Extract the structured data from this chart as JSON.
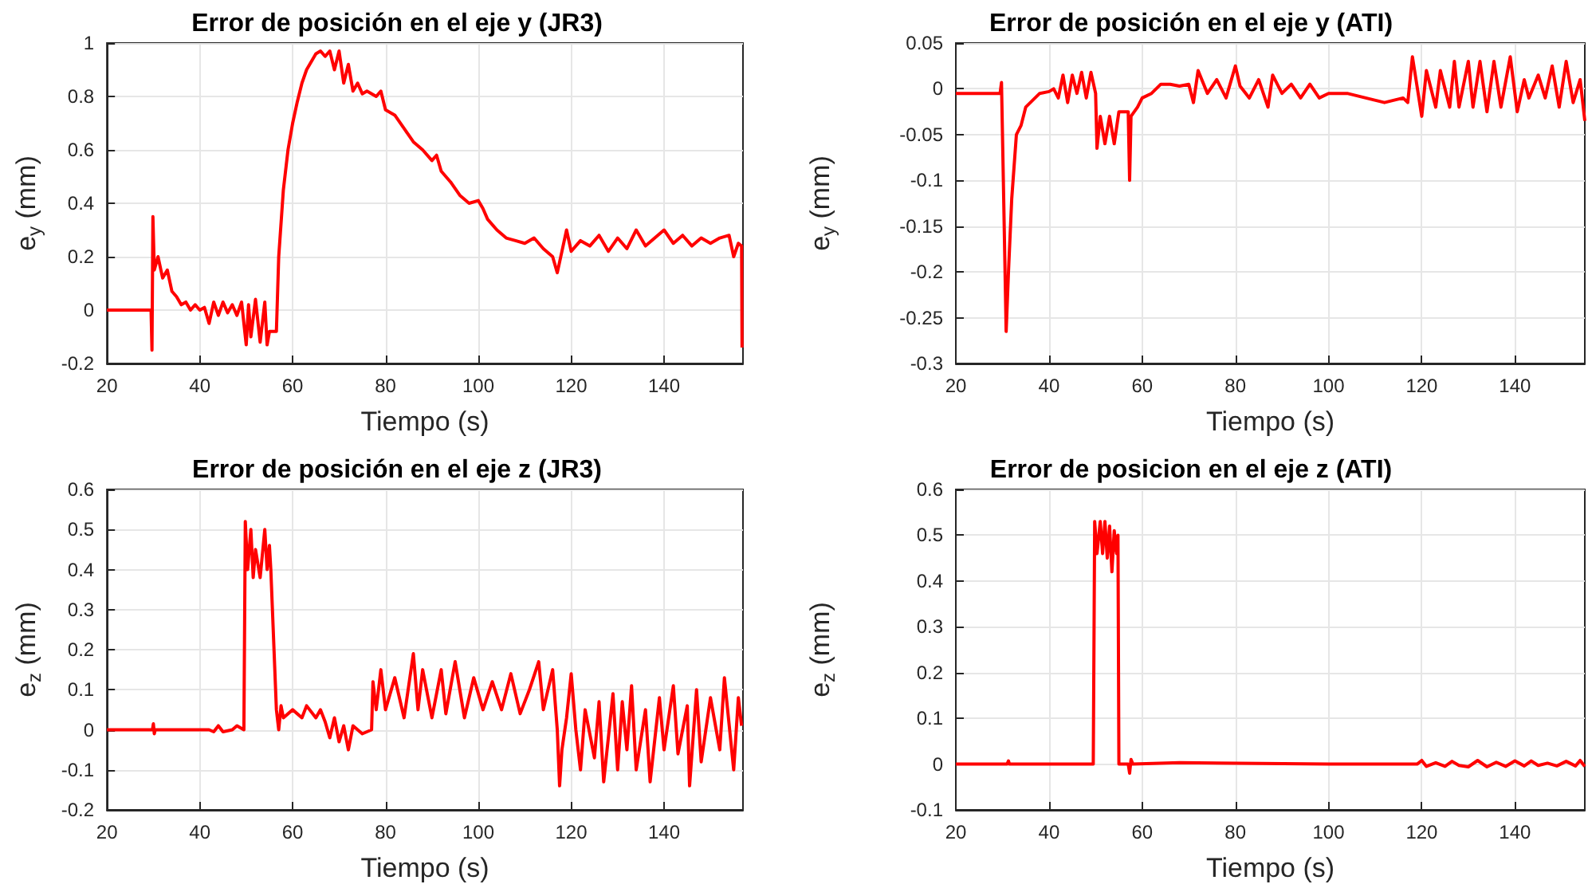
{
  "chart_data": [
    {
      "type": "line",
      "title": "Error de posición en el eje y (JR3)",
      "xlabel": "Tiempo (s)",
      "ylabel": "e$_{y}$ (mm)",
      "color": "#ff0000",
      "grid": true,
      "xlim": [
        20,
        157
      ],
      "xticks": [
        20,
        40,
        60,
        80,
        100,
        120,
        140
      ],
      "ylim": [
        -0.2,
        1
      ],
      "yticks": [
        -0.2,
        0,
        0.2,
        0.4,
        0.6,
        0.8,
        1
      ],
      "x": [
        20,
        29.5,
        29.7,
        29.9,
        30.2,
        31,
        32,
        33,
        34,
        35,
        36,
        37,
        38,
        39,
        40,
        41,
        42,
        43,
        44,
        45,
        46,
        47,
        48,
        49,
        50,
        50.5,
        51,
        52,
        53,
        54,
        54.5,
        55,
        56.5,
        57,
        58,
        59,
        60,
        61,
        62,
        63,
        64,
        65,
        66,
        67,
        68,
        69,
        70,
        71,
        72,
        73,
        74,
        75,
        76,
        78,
        79,
        80,
        82,
        84,
        86,
        88,
        90,
        91,
        92,
        94,
        96,
        98,
        100,
        101,
        102,
        104,
        106,
        108,
        110,
        112,
        114,
        116,
        117,
        118,
        119,
        120,
        122,
        124,
        126,
        128,
        130,
        132,
        134,
        136,
        138,
        140,
        142,
        144,
        146,
        148,
        150,
        152,
        154,
        155,
        156,
        156.7,
        156.8
      ],
      "values": [
        0,
        0,
        -0.15,
        0.35,
        0.15,
        0.2,
        0.12,
        0.15,
        0.07,
        0.05,
        0.02,
        0.03,
        0,
        0.02,
        0,
        0.01,
        -0.05,
        0.03,
        -0.02,
        0.03,
        -0.01,
        0.02,
        -0.02,
        0.03,
        -0.13,
        0.02,
        -0.1,
        0.04,
        -0.12,
        0.03,
        -0.13,
        -0.08,
        -0.08,
        0.2,
        0.45,
        0.6,
        0.7,
        0.78,
        0.85,
        0.9,
        0.93,
        0.96,
        0.97,
        0.95,
        0.97,
        0.9,
        0.97,
        0.85,
        0.92,
        0.82,
        0.85,
        0.81,
        0.82,
        0.8,
        0.82,
        0.75,
        0.73,
        0.68,
        0.63,
        0.6,
        0.56,
        0.58,
        0.52,
        0.48,
        0.43,
        0.4,
        0.41,
        0.38,
        0.34,
        0.3,
        0.27,
        0.26,
        0.25,
        0.27,
        0.23,
        0.2,
        0.14,
        0.22,
        0.3,
        0.22,
        0.26,
        0.24,
        0.28,
        0.22,
        0.27,
        0.23,
        0.3,
        0.24,
        0.27,
        0.3,
        0.25,
        0.28,
        0.24,
        0.27,
        0.25,
        0.27,
        0.28,
        0.2,
        0.25,
        0.24,
        -0.14
      ]
    },
    {
      "type": "line",
      "title": "Error de posición en el eje y (ATI)",
      "xlabel": "Tiempo (s)",
      "ylabel": "e$_{y}$ (mm)",
      "color": "#ff0000",
      "grid": true,
      "xlim": [
        20,
        155
      ],
      "xticks": [
        20,
        40,
        60,
        80,
        100,
        120,
        140
      ],
      "ylim": [
        -0.3,
        0.05
      ],
      "yticks": [
        -0.3,
        -0.25,
        -0.2,
        -0.15,
        -0.1,
        -0.05,
        0,
        0.05
      ],
      "x": [
        20,
        29.5,
        29.8,
        30.2,
        30.8,
        31.3,
        32,
        33,
        34,
        35,
        36,
        37,
        38,
        40,
        41,
        42,
        43,
        44,
        45,
        46,
        47,
        48,
        49,
        50,
        50.3,
        51,
        52,
        53,
        54,
        55,
        57,
        57.3,
        57.6,
        59,
        60,
        62,
        64,
        66,
        68,
        70,
        71,
        72,
        74,
        76,
        78,
        80,
        81,
        83,
        85,
        87,
        88,
        90,
        92,
        94,
        96,
        98,
        100,
        104,
        108,
        112,
        116,
        117,
        118,
        120,
        121,
        123,
        124,
        126,
        127,
        128,
        130,
        131,
        132.5,
        134,
        135.5,
        137,
        139,
        140.5,
        142,
        143,
        145,
        146.5,
        148,
        149.5,
        151,
        152.5,
        154,
        155
      ],
      "values": [
        -0.005,
        -0.005,
        0.007,
        -0.1,
        -0.265,
        -0.2,
        -0.12,
        -0.05,
        -0.04,
        -0.02,
        -0.015,
        -0.01,
        -0.005,
        -0.003,
        0,
        -0.01,
        0.015,
        -0.015,
        0.015,
        -0.005,
        0.018,
        -0.01,
        0.018,
        -0.005,
        -0.065,
        -0.03,
        -0.06,
        -0.03,
        -0.06,
        -0.025,
        -0.025,
        -0.1,
        -0.03,
        -0.02,
        -0.01,
        -0.005,
        0.005,
        0.005,
        0.003,
        0.005,
        -0.015,
        0.02,
        -0.005,
        0.01,
        -0.01,
        0.025,
        0.003,
        -0.01,
        0.01,
        -0.02,
        0.015,
        -0.005,
        0.005,
        -0.01,
        0.005,
        -0.01,
        -0.005,
        -0.005,
        -0.01,
        -0.015,
        -0.01,
        -0.015,
        0.035,
        -0.03,
        0.02,
        -0.02,
        0.02,
        -0.02,
        0.03,
        -0.02,
        0.03,
        -0.02,
        0.03,
        -0.025,
        0.03,
        -0.02,
        0.035,
        -0.025,
        0.01,
        -0.01,
        0.015,
        -0.01,
        0.025,
        -0.02,
        0.03,
        -0.015,
        0.01,
        -0.035
      ]
    },
    {
      "type": "line",
      "title": "Error de posición en el eje z (JR3)",
      "xlabel": "Tiempo (s)",
      "ylabel": "e$_{z}$ (mm)",
      "color": "#ff0000",
      "grid": true,
      "xlim": [
        20,
        157
      ],
      "xticks": [
        20,
        40,
        60,
        80,
        100,
        120,
        140
      ],
      "ylim": [
        -0.2,
        0.6
      ],
      "yticks": [
        -0.2,
        -0.1,
        0,
        0.1,
        0.2,
        0.3,
        0.4,
        0.5,
        0.6
      ],
      "x": [
        20,
        29.8,
        30,
        30.2,
        30.4,
        42,
        43,
        44,
        45,
        47,
        48,
        49.5,
        49.8,
        50.3,
        51,
        51.5,
        52,
        53,
        54,
        54.5,
        55,
        55.3,
        56.5,
        57,
        57.5,
        58,
        60,
        62,
        63,
        65,
        66,
        67,
        68,
        69,
        70,
        71,
        72,
        73,
        75,
        77,
        77.3,
        78,
        79,
        80,
        82,
        84,
        86,
        87,
        88,
        90,
        92,
        93,
        95,
        97,
        99,
        101,
        103,
        105,
        107,
        109,
        111,
        113,
        114,
        116,
        117,
        117.5,
        118,
        119,
        120,
        121,
        122,
        123,
        125,
        126,
        127,
        129,
        130,
        131,
        132,
        133,
        134,
        136,
        137,
        139,
        140,
        142,
        143,
        145,
        145.5,
        147,
        148,
        150,
        152,
        153,
        155,
        156,
        156.7
      ],
      "values": [
        0,
        0,
        0.015,
        -0.01,
        0,
        0,
        -0.005,
        0.01,
        -0.005,
        0,
        0.01,
        0,
        0.52,
        0.4,
        0.5,
        0.38,
        0.45,
        0.38,
        0.5,
        0.4,
        0.46,
        0.4,
        0.05,
        0,
        0.06,
        0.03,
        0.05,
        0.03,
        0.06,
        0.03,
        0.05,
        0.02,
        -0.02,
        0.03,
        -0.03,
        0.01,
        -0.05,
        0.01,
        -0.01,
        0,
        0.12,
        0.05,
        0.15,
        0.05,
        0.13,
        0.03,
        0.19,
        0.05,
        0.15,
        0.03,
        0.15,
        0.04,
        0.17,
        0.03,
        0.13,
        0.05,
        0.12,
        0.05,
        0.14,
        0.04,
        0.1,
        0.17,
        0.05,
        0.15,
        0,
        -0.14,
        -0.05,
        0.03,
        0.14,
        0,
        -0.1,
        0.05,
        -0.07,
        0.07,
        -0.13,
        0.09,
        -0.1,
        0.07,
        -0.05,
        0.11,
        -0.1,
        0.05,
        -0.13,
        0.08,
        -0.05,
        0.11,
        -0.06,
        0.06,
        -0.14,
        0.1,
        -0.08,
        0.08,
        -0.05,
        0.13,
        -0.1,
        0.08,
        0.01
      ]
    },
    {
      "type": "line",
      "title": "Error de posicion en el eje z (ATI)",
      "xlabel": "Tiempo (s)",
      "ylabel": "e$_{z}$ (mm)",
      "color": "#ff0000",
      "grid": true,
      "xlim": [
        20,
        155
      ],
      "xticks": [
        20,
        40,
        60,
        80,
        100,
        120,
        140
      ],
      "ylim": [
        -0.1,
        0.6
      ],
      "yticks": [
        -0.1,
        0,
        0.1,
        0.2,
        0.3,
        0.4,
        0.5,
        0.6
      ],
      "x": [
        20,
        31,
        31.3,
        31.5,
        49.5,
        49.8,
        50.3,
        51,
        51.5,
        52,
        52.5,
        53,
        53.5,
        54,
        54.5,
        54.8,
        55,
        57,
        57.3,
        57.6,
        58,
        68,
        100,
        119,
        120,
        121,
        123,
        125,
        126.5,
        128,
        130,
        132,
        134,
        136,
        138,
        140,
        142,
        143.5,
        145,
        147,
        149,
        151,
        153,
        154,
        155
      ],
      "values": [
        0,
        0,
        0.007,
        0,
        0,
        0.53,
        0.46,
        0.53,
        0.46,
        0.53,
        0.45,
        0.52,
        0.42,
        0.51,
        0.46,
        0.5,
        0,
        0,
        -0.02,
        0.01,
        0,
        0.003,
        0,
        0,
        0.008,
        -0.005,
        0.003,
        -0.005,
        0.006,
        -0.003,
        -0.006,
        0.008,
        -0.006,
        0.004,
        -0.005,
        0.007,
        -0.004,
        0.007,
        -0.003,
        0.002,
        -0.004,
        0.006,
        -0.004,
        0.008,
        -0.005
      ]
    }
  ]
}
